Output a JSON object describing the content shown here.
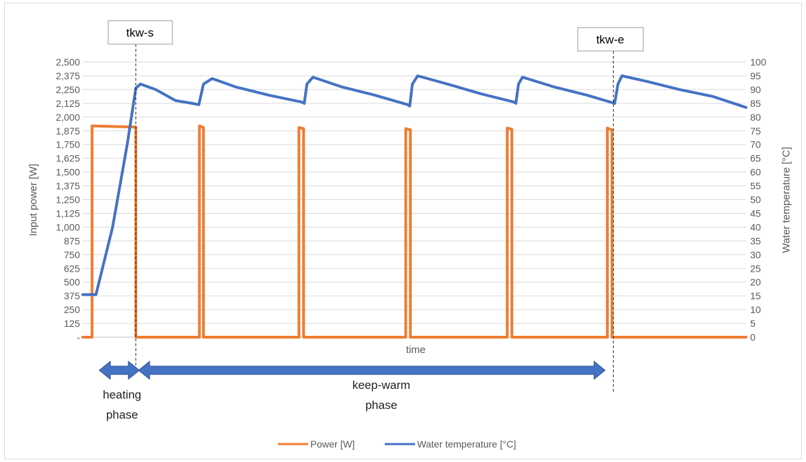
{
  "chart_data": {
    "type": "line",
    "title": "",
    "xlabel": "time",
    "ylabel": "Input power [W]",
    "y2label": "Water temperature [°C]",
    "x_range": [
      0,
      1000
    ],
    "ylim": [
      0,
      2500
    ],
    "y2lim": [
      0,
      100
    ],
    "y_ticks": [
      "-",
      "125",
      "250",
      "375",
      "500",
      "625",
      "750",
      "875",
      "1,000",
      "1,125",
      "1,250",
      "1,375",
      "1,500",
      "1,625",
      "1,750",
      "1,875",
      "2,000",
      "2,125",
      "2,250",
      "2,375",
      "2,500"
    ],
    "y2_ticks": [
      "0",
      "5",
      "10",
      "15",
      "20",
      "25",
      "30",
      "35",
      "40",
      "45",
      "50",
      "55",
      "60",
      "65",
      "70",
      "75",
      "80",
      "85",
      "90",
      "95",
      "100"
    ],
    "grid": true,
    "legend_position": "bottom",
    "series": [
      {
        "name": "Power [W]",
        "axis": "left",
        "color": "#ED7D31",
        "points": [
          [
            0,
            0
          ],
          [
            14,
            0
          ],
          [
            14,
            1920
          ],
          [
            80,
            1910
          ],
          [
            80,
            0
          ],
          [
            176,
            0
          ],
          [
            176,
            1920
          ],
          [
            182,
            1905
          ],
          [
            182,
            0
          ],
          [
            326,
            0
          ],
          [
            326,
            1905
          ],
          [
            333,
            1895
          ],
          [
            333,
            0
          ],
          [
            487,
            0
          ],
          [
            487,
            1895
          ],
          [
            494,
            1885
          ],
          [
            494,
            0
          ],
          [
            640,
            0
          ],
          [
            640,
            1900
          ],
          [
            647,
            1890
          ],
          [
            647,
            0
          ],
          [
            791,
            0
          ],
          [
            791,
            1900
          ],
          [
            798,
            1885
          ],
          [
            798,
            0
          ],
          [
            1000,
            0
          ]
        ]
      },
      {
        "name": "Water temperature [°C]",
        "axis": "right",
        "color": "#4472C4",
        "points": [
          [
            0,
            15.5
          ],
          [
            20,
            15.5
          ],
          [
            45,
            40
          ],
          [
            67,
            70
          ],
          [
            80,
            90.5
          ],
          [
            87,
            92
          ],
          [
            110,
            90
          ],
          [
            140,
            86
          ],
          [
            165,
            85
          ],
          [
            175,
            84.5
          ],
          [
            182,
            92
          ],
          [
            195,
            94
          ],
          [
            230,
            91
          ],
          [
            280,
            88
          ],
          [
            330,
            85.5
          ],
          [
            334,
            85
          ],
          [
            338,
            92
          ],
          [
            347,
            94.5
          ],
          [
            390,
            91
          ],
          [
            440,
            88
          ],
          [
            490,
            84.5
          ],
          [
            493,
            84
          ],
          [
            497,
            92
          ],
          [
            505,
            95
          ],
          [
            550,
            92
          ],
          [
            600,
            88.5
          ],
          [
            650,
            85.5
          ],
          [
            653,
            85
          ],
          [
            657,
            92
          ],
          [
            663,
            94.5
          ],
          [
            710,
            91
          ],
          [
            760,
            88
          ],
          [
            802,
            85
          ],
          [
            807,
            92
          ],
          [
            813,
            95
          ],
          [
            850,
            93
          ],
          [
            900,
            90
          ],
          [
            950,
            87.5
          ],
          [
            1000,
            83.5
          ]
        ]
      }
    ],
    "annotations": {
      "tkw_s": {
        "label": "tkw-s",
        "x": 80
      },
      "tkw_e": {
        "label": "tkw-e",
        "x": 800
      },
      "heating_phase": {
        "label_line1": "heating",
        "label_line2": "phase",
        "x_start": 0,
        "x_end": 75
      },
      "keep_warm_phase": {
        "label_line1": "keep-warm",
        "label_line2": "phase",
        "x_start": 80,
        "x_end": 800
      }
    }
  }
}
